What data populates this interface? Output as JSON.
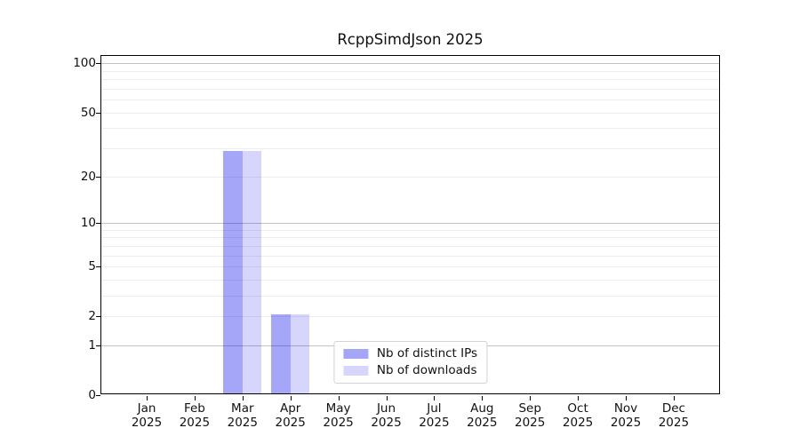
{
  "chart_data": {
    "type": "bar",
    "title": "RcppSimdJson 2025",
    "year": "2025",
    "categories": [
      "Jan",
      "Feb",
      "Mar",
      "Apr",
      "May",
      "Jun",
      "Jul",
      "Aug",
      "Sep",
      "Oct",
      "Nov",
      "Dec"
    ],
    "series": [
      {
        "name": "Nb of distinct IPs",
        "color": "rgba(0,0,235,0.35)",
        "values": [
          0,
          0,
          28,
          2,
          0,
          0,
          0,
          0,
          0,
          0,
          0,
          0
        ]
      },
      {
        "name": "Nb of downloads",
        "color": "rgba(0,0,235,0.16)",
        "values": [
          0,
          0,
          28,
          2,
          0,
          0,
          0,
          0,
          0,
          0,
          0,
          0
        ]
      }
    ],
    "y_axis": {
      "scale": "log1p",
      "tick_values": [
        0,
        1,
        2,
        5,
        10,
        20,
        50,
        100
      ],
      "minor_gridlines": [
        2,
        3,
        4,
        5,
        6,
        7,
        8,
        9,
        20,
        30,
        40,
        50,
        60,
        70,
        80,
        90
      ],
      "emphasis_gridlines": [
        1,
        10,
        100
      ],
      "max_value": 111,
      "ylim": [
        0,
        111
      ]
    },
    "x_axis": {
      "tick_label_lines": 2,
      "grid": false
    },
    "legend": {
      "position": "bottom-center-inside"
    },
    "colors": {
      "minor_gridline": "#ededed",
      "major_gridline": "#c3c3c3",
      "axis": "#000000",
      "background": "#ffffff"
    }
  }
}
